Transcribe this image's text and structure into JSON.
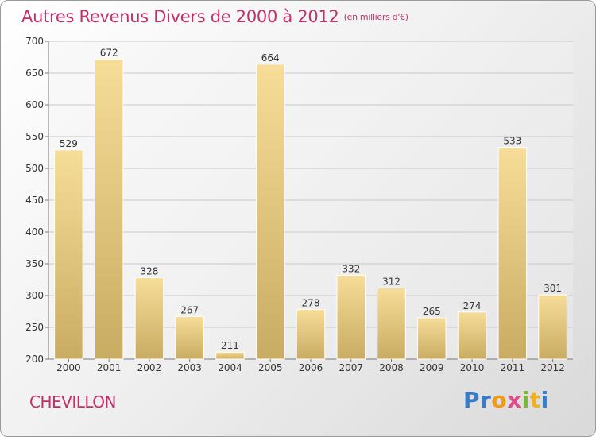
{
  "title": "Autres Revenus Divers de 2000 à 2012",
  "unit_label": "(en milliers d'€)",
  "city": "CHEVILLON",
  "logo_text": "Proxiti",
  "colors": {
    "title": "#c0306b",
    "bar_light": "#f6dd98",
    "bar_dark": "#c9ac63",
    "grid": "#c8c8c8"
  },
  "chart_data": {
    "type": "bar",
    "categories": [
      "2000",
      "2001",
      "2002",
      "2003",
      "2004",
      "2005",
      "2006",
      "2007",
      "2008",
      "2009",
      "2010",
      "2011",
      "2012"
    ],
    "values": [
      529,
      672,
      328,
      267,
      211,
      664,
      278,
      332,
      312,
      265,
      274,
      533,
      301
    ],
    "xlabel": "",
    "ylabel": "",
    "ylim": [
      200,
      700
    ],
    "yticks": [
      200,
      250,
      300,
      350,
      400,
      450,
      500,
      550,
      600,
      650,
      700
    ],
    "grid": true,
    "legend": "none"
  }
}
